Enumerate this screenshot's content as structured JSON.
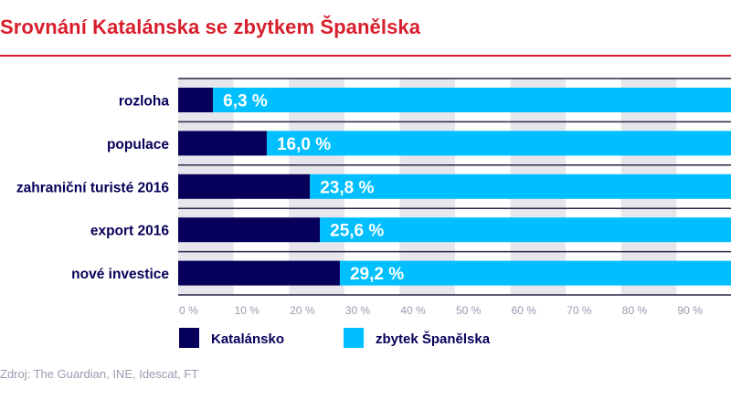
{
  "chart_data": {
    "type": "bar",
    "stacked": true,
    "orientation": "horizontal",
    "title": "Srovnání Katalánska se zbytkem Španělska",
    "categories": [
      "rozloha",
      "populace",
      "zahraniční turisté 2016",
      "export 2016",
      "nové investice"
    ],
    "series": [
      {
        "name": "Katalánsko",
        "color": "#07005a",
        "values": [
          6.3,
          16.0,
          23.8,
          25.6,
          29.2
        ]
      },
      {
        "name": "zbytek Španělska",
        "color": "#00bfff",
        "values": [
          93.7,
          84.0,
          76.2,
          74.4,
          70.8
        ]
      }
    ],
    "data_labels": [
      "6,3 %",
      "16,0 %",
      "23,8 %",
      "25,6 %",
      "29,2 %"
    ],
    "xlim": [
      0,
      100
    ],
    "x_ticks": [
      "0 %",
      "10 %",
      "20 %",
      "30 %",
      "40 %",
      "50 %",
      "60 %",
      "70 %",
      "80 %",
      "90 %"
    ],
    "grid": "alternating vertical bands",
    "legend": "bottom",
    "source": "Zdroj: The Guardian, INE, Idescat, FT"
  }
}
